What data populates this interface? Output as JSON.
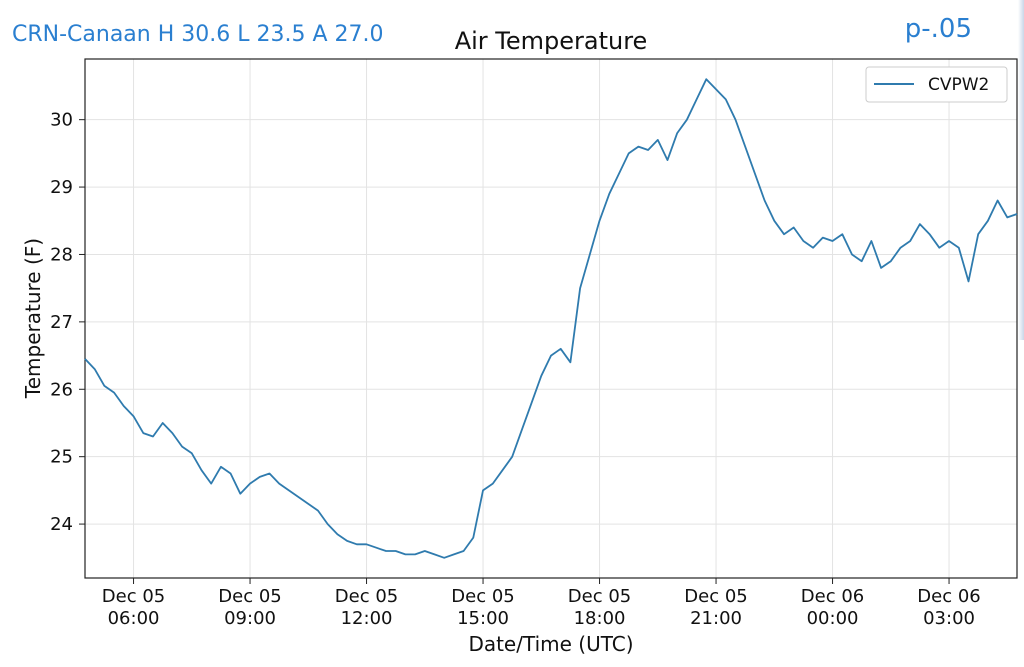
{
  "overlay": {
    "station_summary": "CRN-Canaan H 30.6 L 23.5 A 27.0",
    "pvalue": "p-.05"
  },
  "colors": {
    "overlay_text": "#2a7fd0",
    "series": "#2f7bae"
  },
  "chart_data": {
    "type": "line",
    "title": "Air Temperature",
    "xlabel": "Date/Time (UTC)",
    "ylabel": "Temperature (F)",
    "grid": true,
    "legend_position": "top-right",
    "xlim": [
      "2018-12-05 04:45",
      "2018-12-06 04:45"
    ],
    "ylim": [
      23.2,
      30.9
    ],
    "y_ticks": [
      24,
      25,
      26,
      27,
      28,
      29,
      30
    ],
    "x_ticks": [
      {
        "time": "2018-12-05 06:00",
        "line1": "Dec 05",
        "line2": "06:00"
      },
      {
        "time": "2018-12-05 09:00",
        "line1": "Dec 05",
        "line2": "09:00"
      },
      {
        "time": "2018-12-05 12:00",
        "line1": "Dec 05",
        "line2": "12:00"
      },
      {
        "time": "2018-12-05 15:00",
        "line1": "Dec 05",
        "line2": "15:00"
      },
      {
        "time": "2018-12-05 18:00",
        "line1": "Dec 05",
        "line2": "18:00"
      },
      {
        "time": "2018-12-05 21:00",
        "line1": "Dec 05",
        "line2": "21:00"
      },
      {
        "time": "2018-12-06 00:00",
        "line1": "Dec 06",
        "line2": "00:00"
      },
      {
        "time": "2018-12-06 03:00",
        "line1": "Dec 06",
        "line2": "03:00"
      }
    ],
    "series": [
      {
        "name": "CVPW2",
        "color": "#2f7bae",
        "points": [
          [
            "2018-12-05 04:45",
            26.45
          ],
          [
            "2018-12-05 05:00",
            26.3
          ],
          [
            "2018-12-05 05:15",
            26.05
          ],
          [
            "2018-12-05 05:30",
            25.95
          ],
          [
            "2018-12-05 05:45",
            25.75
          ],
          [
            "2018-12-05 06:00",
            25.6
          ],
          [
            "2018-12-05 06:15",
            25.35
          ],
          [
            "2018-12-05 06:30",
            25.3
          ],
          [
            "2018-12-05 06:45",
            25.5
          ],
          [
            "2018-12-05 07:00",
            25.35
          ],
          [
            "2018-12-05 07:15",
            25.15
          ],
          [
            "2018-12-05 07:30",
            25.05
          ],
          [
            "2018-12-05 07:45",
            24.8
          ],
          [
            "2018-12-05 08:00",
            24.6
          ],
          [
            "2018-12-05 08:15",
            24.85
          ],
          [
            "2018-12-05 08:30",
            24.75
          ],
          [
            "2018-12-05 08:45",
            24.45
          ],
          [
            "2018-12-05 09:00",
            24.6
          ],
          [
            "2018-12-05 09:15",
            24.7
          ],
          [
            "2018-12-05 09:30",
            24.75
          ],
          [
            "2018-12-05 09:45",
            24.6
          ],
          [
            "2018-12-05 10:00",
            24.5
          ],
          [
            "2018-12-05 10:15",
            24.4
          ],
          [
            "2018-12-05 10:30",
            24.3
          ],
          [
            "2018-12-05 10:45",
            24.2
          ],
          [
            "2018-12-05 11:00",
            24.0
          ],
          [
            "2018-12-05 11:15",
            23.85
          ],
          [
            "2018-12-05 11:30",
            23.75
          ],
          [
            "2018-12-05 11:45",
            23.7
          ],
          [
            "2018-12-05 12:00",
            23.7
          ],
          [
            "2018-12-05 12:15",
            23.65
          ],
          [
            "2018-12-05 12:30",
            23.6
          ],
          [
            "2018-12-05 12:45",
            23.6
          ],
          [
            "2018-12-05 13:00",
            23.55
          ],
          [
            "2018-12-05 13:15",
            23.55
          ],
          [
            "2018-12-05 13:30",
            23.6
          ],
          [
            "2018-12-05 13:45",
            23.55
          ],
          [
            "2018-12-05 14:00",
            23.5
          ],
          [
            "2018-12-05 14:15",
            23.55
          ],
          [
            "2018-12-05 14:30",
            23.6
          ],
          [
            "2018-12-05 14:45",
            23.8
          ],
          [
            "2018-12-05 15:00",
            24.5
          ],
          [
            "2018-12-05 15:15",
            24.6
          ],
          [
            "2018-12-05 15:30",
            24.8
          ],
          [
            "2018-12-05 15:45",
            25.0
          ],
          [
            "2018-12-05 16:00",
            25.4
          ],
          [
            "2018-12-05 16:15",
            25.8
          ],
          [
            "2018-12-05 16:30",
            26.2
          ],
          [
            "2018-12-05 16:45",
            26.5
          ],
          [
            "2018-12-05 17:00",
            26.6
          ],
          [
            "2018-12-05 17:15",
            26.4
          ],
          [
            "2018-12-05 17:30",
            27.5
          ],
          [
            "2018-12-05 17:45",
            28.0
          ],
          [
            "2018-12-05 18:00",
            28.5
          ],
          [
            "2018-12-05 18:15",
            28.9
          ],
          [
            "2018-12-05 18:30",
            29.2
          ],
          [
            "2018-12-05 18:45",
            29.5
          ],
          [
            "2018-12-05 19:00",
            29.6
          ],
          [
            "2018-12-05 19:15",
            29.55
          ],
          [
            "2018-12-05 19:30",
            29.7
          ],
          [
            "2018-12-05 19:45",
            29.4
          ],
          [
            "2018-12-05 20:00",
            29.8
          ],
          [
            "2018-12-05 20:15",
            30.0
          ],
          [
            "2018-12-05 20:30",
            30.3
          ],
          [
            "2018-12-05 20:45",
            30.6
          ],
          [
            "2018-12-05 21:00",
            30.45
          ],
          [
            "2018-12-05 21:15",
            30.3
          ],
          [
            "2018-12-05 21:30",
            30.0
          ],
          [
            "2018-12-05 21:45",
            29.6
          ],
          [
            "2018-12-05 22:00",
            29.2
          ],
          [
            "2018-12-05 22:15",
            28.8
          ],
          [
            "2018-12-05 22:30",
            28.5
          ],
          [
            "2018-12-05 22:45",
            28.3
          ],
          [
            "2018-12-05 23:00",
            28.4
          ],
          [
            "2018-12-05 23:15",
            28.2
          ],
          [
            "2018-12-05 23:30",
            28.1
          ],
          [
            "2018-12-05 23:45",
            28.25
          ],
          [
            "2018-12-06 00:00",
            28.2
          ],
          [
            "2018-12-06 00:15",
            28.3
          ],
          [
            "2018-12-06 00:30",
            28.0
          ],
          [
            "2018-12-06 00:45",
            27.9
          ],
          [
            "2018-12-06 01:00",
            28.2
          ],
          [
            "2018-12-06 01:15",
            27.8
          ],
          [
            "2018-12-06 01:30",
            27.9
          ],
          [
            "2018-12-06 01:45",
            28.1
          ],
          [
            "2018-12-06 02:00",
            28.2
          ],
          [
            "2018-12-06 02:15",
            28.45
          ],
          [
            "2018-12-06 02:30",
            28.3
          ],
          [
            "2018-12-06 02:45",
            28.1
          ],
          [
            "2018-12-06 03:00",
            28.2
          ],
          [
            "2018-12-06 03:15",
            28.1
          ],
          [
            "2018-12-06 03:30",
            27.6
          ],
          [
            "2018-12-06 03:45",
            28.3
          ],
          [
            "2018-12-06 04:00",
            28.5
          ],
          [
            "2018-12-06 04:15",
            28.8
          ],
          [
            "2018-12-06 04:30",
            28.55
          ],
          [
            "2018-12-06 04:45",
            28.6
          ]
        ]
      }
    ]
  }
}
